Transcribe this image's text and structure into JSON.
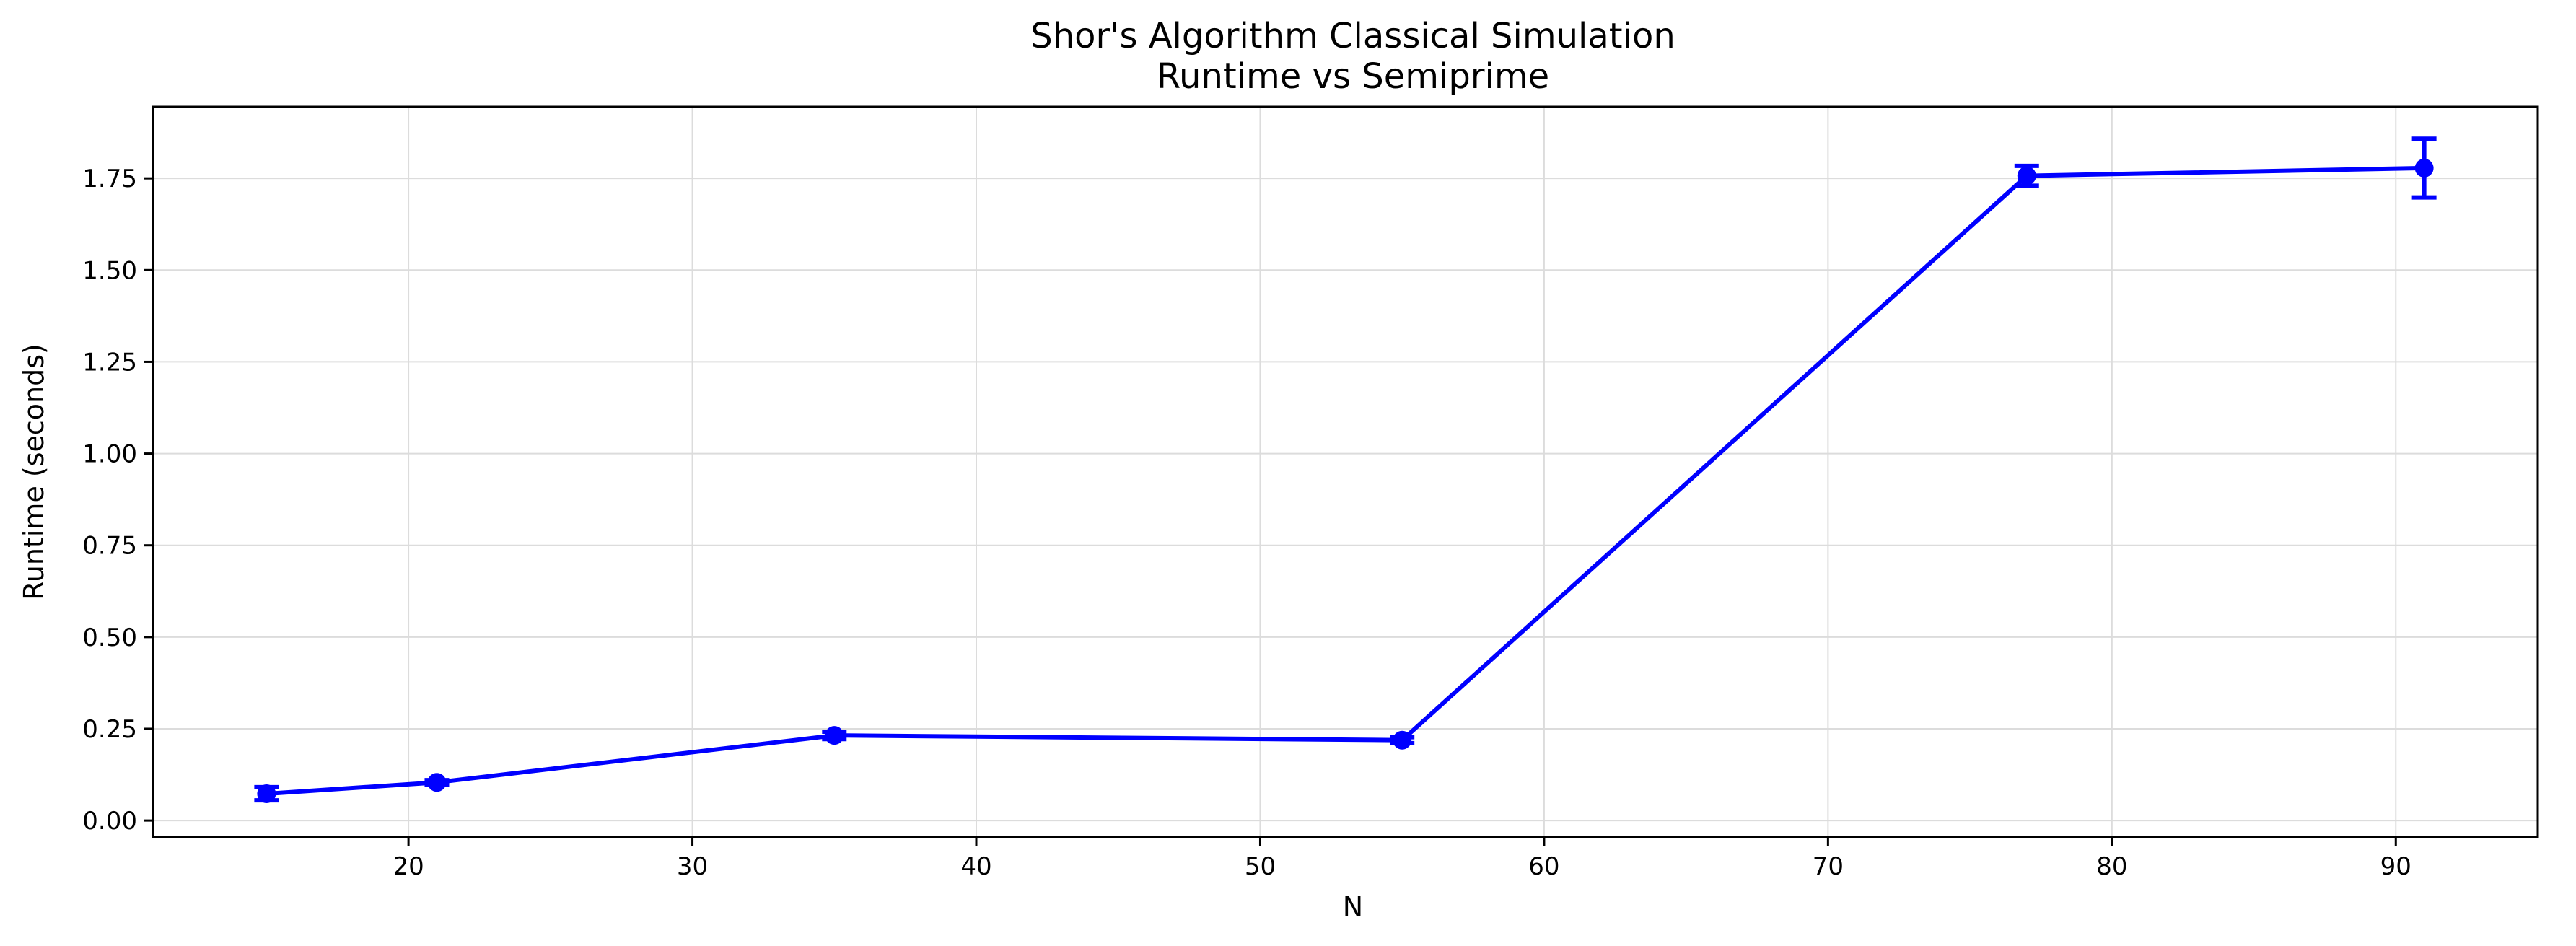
{
  "chart_data": {
    "type": "line",
    "title": "Shor's Algorithm Classical Simulation",
    "subtitle": "Runtime vs Semiprime",
    "xlabel": "N",
    "ylabel": "Runtime (seconds)",
    "xlim": [
      11,
      95
    ],
    "ylim": [
      -0.045,
      1.945
    ],
    "xticks": [
      20,
      30,
      40,
      50,
      60,
      70,
      80,
      90
    ],
    "xtick_labels": [
      "20",
      "30",
      "40",
      "50",
      "60",
      "70",
      "80",
      "90"
    ],
    "yticks": [
      0.0,
      0.25,
      0.5,
      0.75,
      1.0,
      1.25,
      1.5,
      1.75
    ],
    "ytick_labels": [
      "0.00",
      "0.25",
      "0.50",
      "0.75",
      "1.00",
      "1.25",
      "1.50",
      "1.75"
    ],
    "grid": true,
    "series": [
      {
        "color": "#0000ff",
        "points": [
          {
            "x": 15,
            "y": 0.073,
            "err": 0.018
          },
          {
            "x": 21,
            "y": 0.104,
            "err": 0.006
          },
          {
            "x": 35,
            "y": 0.232,
            "err": 0.01
          },
          {
            "x": 55,
            "y": 0.219,
            "err": 0.008
          },
          {
            "x": 77,
            "y": 1.757,
            "err": 0.027
          },
          {
            "x": 91,
            "y": 1.778,
            "err": 0.08
          }
        ]
      }
    ]
  }
}
